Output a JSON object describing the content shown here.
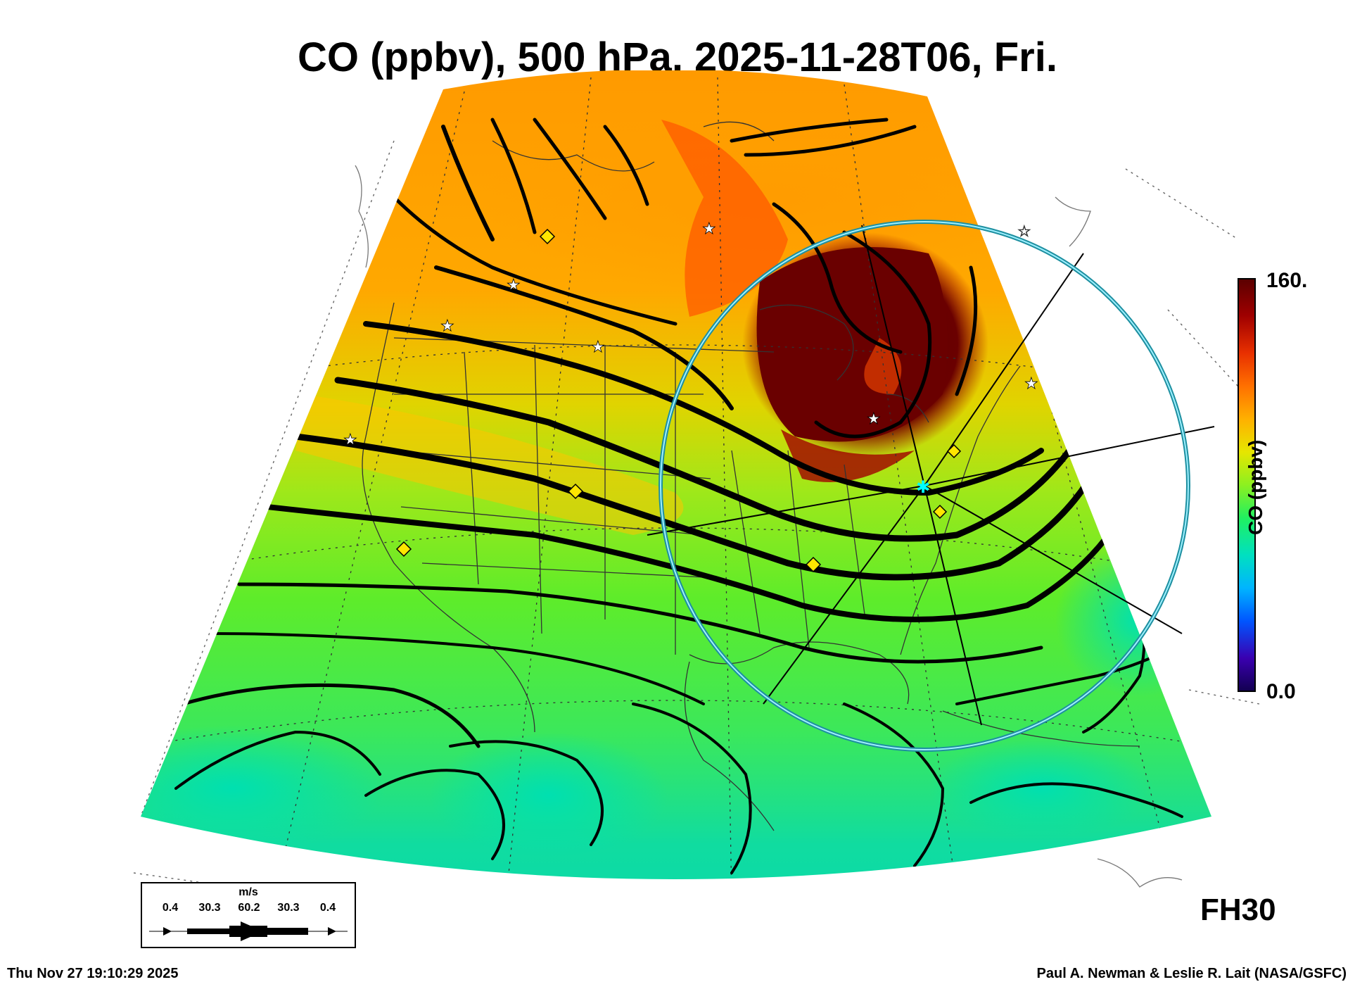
{
  "title": "CO (ppbv), 500 hPa, 2025-11-28T06, Fri.",
  "colorbar": {
    "label": "CO (ppbv)",
    "max_label": "160.",
    "min_label": "0.0",
    "range": [
      0,
      160
    ],
    "colors": [
      "#120050",
      "#3a00b0",
      "#0055ff",
      "#00b4ff",
      "#00e0c0",
      "#20f060",
      "#8cf020",
      "#e6e600",
      "#ffb000",
      "#ff7000",
      "#e83000",
      "#a00000",
      "#5a0000"
    ]
  },
  "legend": {
    "unit": "m/s",
    "values": [
      "0.4",
      "30.3",
      "60.2",
      "30.3",
      "0.4"
    ]
  },
  "forecast_hour": "FH30",
  "timestamp": "Thu Nov 27 19:10:29 2025",
  "credit": "Paul A. Newman & Leslie R. Lait (NASA/GSFC)",
  "map": {
    "projection": "conic sector, North America",
    "field": "CO mixing ratio at 500 hPa",
    "overlays": [
      "wind streamlines",
      "range ring",
      "radial lines",
      "station markers"
    ],
    "marker_colors": {
      "star": "#ffffff",
      "diamond": "#ffe600",
      "center": "#00ffff",
      "ring": "#38c8d8"
    }
  }
}
